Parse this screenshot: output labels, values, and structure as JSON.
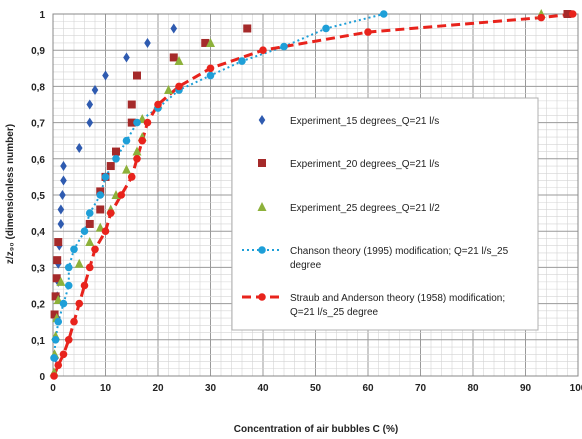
{
  "chart_data": {
    "type": "scatter",
    "xlabel": "Concentration of air bubbles C (%)",
    "ylabel": "z/z₉₀ (dimensionless number)",
    "xlim": [
      0,
      100
    ],
    "ylim": [
      0,
      1
    ],
    "x_ticks": [
      "0",
      "10",
      "20",
      "30",
      "40",
      "50",
      "60",
      "70",
      "80",
      "90",
      "100"
    ],
    "y_ticks": [
      "0",
      "0,1",
      "0,2",
      "0,3",
      "0,4",
      "0,5",
      "0,6",
      "0,7",
      "0,8",
      "0,9",
      "1"
    ],
    "grid": true,
    "legend_position": "center-right",
    "series": [
      {
        "name": "Experiment_15 degrees_Q=21 l/s",
        "marker": "diamond",
        "color": "#2F5BB0",
        "points": [
          [
            0.5,
            0.05
          ],
          [
            0.8,
            0.16
          ],
          [
            0.8,
            0.22
          ],
          [
            1,
            0.26
          ],
          [
            1,
            0.31
          ],
          [
            1.2,
            0.36
          ],
          [
            1.5,
            0.42
          ],
          [
            1.5,
            0.46
          ],
          [
            1.8,
            0.5
          ],
          [
            2,
            0.54
          ],
          [
            2,
            0.58
          ],
          [
            5,
            0.63
          ],
          [
            7,
            0.7
          ],
          [
            7,
            0.75
          ],
          [
            8,
            0.79
          ],
          [
            10,
            0.83
          ],
          [
            14,
            0.88
          ],
          [
            18,
            0.92
          ],
          [
            23,
            0.96
          ]
        ]
      },
      {
        "name": "Experiment_20 degrees_Q=21 l/s",
        "marker": "square",
        "color": "#A52A2A",
        "points": [
          [
            0.3,
            0.17
          ],
          [
            0.5,
            0.22
          ],
          [
            0.7,
            0.27
          ],
          [
            0.8,
            0.32
          ],
          [
            1,
            0.37
          ],
          [
            7,
            0.42
          ],
          [
            9,
            0.46
          ],
          [
            9,
            0.51
          ],
          [
            10,
            0.55
          ],
          [
            11,
            0.58
          ],
          [
            12,
            0.62
          ],
          [
            15,
            0.7
          ],
          [
            15,
            0.75
          ],
          [
            16,
            0.83
          ],
          [
            23,
            0.88
          ],
          [
            29,
            0.92
          ],
          [
            37,
            0.96
          ],
          [
            98,
            1.0
          ]
        ]
      },
      {
        "name": "Experiment_25 degrees_Q=21 l/2",
        "marker": "triangle",
        "color": "#8DB13A",
        "points": [
          [
            0.2,
            0.01
          ],
          [
            0.3,
            0.06
          ],
          [
            0.5,
            0.11
          ],
          [
            0.7,
            0.16
          ],
          [
            1,
            0.21
          ],
          [
            1.5,
            0.26
          ],
          [
            5,
            0.31
          ],
          [
            7,
            0.37
          ],
          [
            9,
            0.41
          ],
          [
            11,
            0.46
          ],
          [
            12,
            0.5
          ],
          [
            14,
            0.57
          ],
          [
            16,
            0.62
          ],
          [
            17,
            0.66
          ],
          [
            17,
            0.71
          ],
          [
            20,
            0.75
          ],
          [
            22,
            0.79
          ],
          [
            24,
            0.87
          ],
          [
            30,
            0.92
          ],
          [
            93,
            1.0
          ]
        ]
      },
      {
        "name": "Chanson theory (1995) modification; Q=21 l/s_25 degree",
        "marker": "circle",
        "line": "dotted",
        "color": "#1E9FD8",
        "points": [
          [
            0.2,
            0.05
          ],
          [
            0.5,
            0.1
          ],
          [
            1,
            0.15
          ],
          [
            2,
            0.2
          ],
          [
            3,
            0.25
          ],
          [
            3,
            0.3
          ],
          [
            4,
            0.35
          ],
          [
            6,
            0.4
          ],
          [
            7,
            0.45
          ],
          [
            9,
            0.5
          ],
          [
            10,
            0.55
          ],
          [
            12,
            0.6
          ],
          [
            14,
            0.65
          ],
          [
            16,
            0.7
          ],
          [
            20,
            0.74
          ],
          [
            24,
            0.79
          ],
          [
            30,
            0.83
          ],
          [
            36,
            0.87
          ],
          [
            44,
            0.91
          ],
          [
            52,
            0.96
          ],
          [
            63,
            1.0
          ]
        ]
      },
      {
        "name": "Straub and Anderson theory (1958) modification; Q=21 l/s_25 degree",
        "marker": "circle",
        "line": "dashed",
        "color": "#E8231C",
        "points": [
          [
            0.2,
            0.0
          ],
          [
            1,
            0.03
          ],
          [
            2,
            0.06
          ],
          [
            3,
            0.1
          ],
          [
            4,
            0.15
          ],
          [
            5,
            0.2
          ],
          [
            6,
            0.25
          ],
          [
            7,
            0.3
          ],
          [
            8,
            0.35
          ],
          [
            10,
            0.4
          ],
          [
            11,
            0.45
          ],
          [
            13,
            0.5
          ],
          [
            15,
            0.55
          ],
          [
            16,
            0.6
          ],
          [
            17,
            0.65
          ],
          [
            18,
            0.7
          ],
          [
            20,
            0.75
          ],
          [
            24,
            0.8
          ],
          [
            30,
            0.85
          ],
          [
            40,
            0.9
          ],
          [
            60,
            0.95
          ],
          [
            93,
            0.99
          ],
          [
            99,
            1.0
          ]
        ]
      }
    ]
  }
}
